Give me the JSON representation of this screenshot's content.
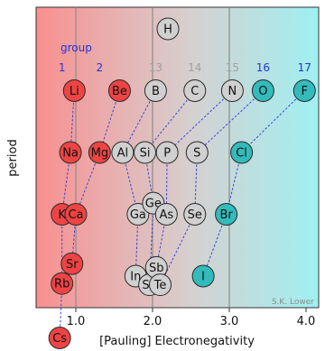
{
  "chart_data": {
    "type": "scatter",
    "xlabel": "[Pauling] Electronegativity",
    "ylabel": "period",
    "xlim": [
      0.35,
      4.35
    ],
    "x_ticks": [
      {
        "value": 1.0,
        "label": "1.0"
      },
      {
        "value": 2.0,
        "label": "2.0"
      },
      {
        "value": 3.0,
        "label": "3.0"
      },
      {
        "value": 4.0,
        "label": "4.0"
      }
    ],
    "grid": "vertical lines at 1.0, 2.0, 3.0",
    "background": "horizontal gradient red to cyan",
    "group_header_label": "group",
    "groups": [
      {
        "label": "1",
        "x": 0.82,
        "color": "#2233dd"
      },
      {
        "label": "2",
        "x": 1.31,
        "color": "#2233dd"
      },
      {
        "label": "13",
        "x": 2.04,
        "color": "#a0a0a0"
      },
      {
        "label": "14",
        "x": 2.55,
        "color": "#a0a0a0"
      },
      {
        "label": "15",
        "x": 3.04,
        "color": "#a0a0a0"
      },
      {
        "label": "16",
        "x": 3.44,
        "color": "#2233dd"
      },
      {
        "label": "17",
        "x": 3.98,
        "color": "#2233dd"
      }
    ],
    "elements": [
      {
        "symbol": "H",
        "x": 2.2,
        "period": 1,
        "color": "#d0d0d0"
      },
      {
        "symbol": "Li",
        "x": 0.98,
        "period": 2,
        "color": "#ee4444"
      },
      {
        "symbol": "Be",
        "x": 1.57,
        "period": 2,
        "color": "#ee4444"
      },
      {
        "symbol": "B",
        "x": 2.04,
        "period": 2,
        "color": "#d0d0d0"
      },
      {
        "symbol": "C",
        "x": 2.55,
        "period": 2,
        "color": "#d0d0d0"
      },
      {
        "symbol": "N",
        "x": 3.04,
        "period": 2,
        "color": "#d0d0d0"
      },
      {
        "symbol": "O",
        "x": 3.44,
        "period": 2,
        "color": "#33bbbb"
      },
      {
        "symbol": "F",
        "x": 3.98,
        "period": 2,
        "color": "#33bbbb"
      },
      {
        "symbol": "Na",
        "x": 0.93,
        "period": 3,
        "color": "#ee4444"
      },
      {
        "symbol": "Mg",
        "x": 1.31,
        "period": 3,
        "color": "#ee4444"
      },
      {
        "symbol": "Al",
        "x": 1.61,
        "period": 3,
        "color": "#d0d0d0"
      },
      {
        "symbol": "Si",
        "x": 1.9,
        "period": 3,
        "color": "#d0d0d0"
      },
      {
        "symbol": "P",
        "x": 2.19,
        "period": 3,
        "color": "#d0d0d0"
      },
      {
        "symbol": "S",
        "x": 2.58,
        "period": 3,
        "color": "#d0d0d0"
      },
      {
        "symbol": "Cl",
        "x": 3.16,
        "period": 3,
        "color": "#33bbbb"
      },
      {
        "symbol": "K",
        "x": 0.82,
        "period": 4,
        "color": "#ee4444"
      },
      {
        "symbol": "Ca",
        "x": 1.0,
        "period": 4,
        "color": "#ee4444"
      },
      {
        "symbol": "Ga",
        "x": 1.81,
        "period": 4,
        "color": "#d0d0d0"
      },
      {
        "symbol": "Ge",
        "x": 2.01,
        "period": 3.82,
        "color": "#d0d0d0"
      },
      {
        "symbol": "As",
        "x": 2.18,
        "period": 4,
        "color": "#d0d0d0"
      },
      {
        "symbol": "Se",
        "x": 2.55,
        "period": 4,
        "color": "#d0d0d0"
      },
      {
        "symbol": "Br",
        "x": 2.96,
        "period": 4,
        "color": "#33bbbb"
      },
      {
        "symbol": "Sr",
        "x": 0.95,
        "period": 4.8,
        "color": "#ee4444"
      },
      {
        "symbol": "Rb",
        "x": 0.82,
        "period": 5.12,
        "color": "#ee4444"
      },
      {
        "symbol": "In",
        "x": 1.78,
        "period": 5,
        "color": "#d0d0d0"
      },
      {
        "symbol": "Sn",
        "x": 1.96,
        "period": 5.14,
        "color": "#d0d0d0"
      },
      {
        "symbol": "Sb",
        "x": 2.05,
        "period": 4.86,
        "color": "#d0d0d0"
      },
      {
        "symbol": "Te",
        "x": 2.1,
        "period": 5.14,
        "color": "#d0d0d0"
      },
      {
        "symbol": "I",
        "x": 2.66,
        "period": 5,
        "color": "#33bbbb"
      },
      {
        "symbol": "Cs",
        "x": 0.79,
        "period": 6,
        "color": "#ee4444"
      }
    ],
    "connections": [
      [
        "Li",
        "Na"
      ],
      [
        "Na",
        "K"
      ],
      [
        "K",
        "Rb"
      ],
      [
        "Rb",
        "Cs"
      ],
      [
        "Be",
        "Mg"
      ],
      [
        "Mg",
        "Ca"
      ],
      [
        "Ca",
        "Sr"
      ],
      [
        "B",
        "Al"
      ],
      [
        "Al",
        "Ga"
      ],
      [
        "Ga",
        "In"
      ],
      [
        "C",
        "Si"
      ],
      [
        "Si",
        "Ge"
      ],
      [
        "Ge",
        "Sn"
      ],
      [
        "N",
        "P"
      ],
      [
        "P",
        "As"
      ],
      [
        "As",
        "Sb"
      ],
      [
        "O",
        "S"
      ],
      [
        "S",
        "Se"
      ],
      [
        "Se",
        "Te"
      ],
      [
        "F",
        "Cl"
      ],
      [
        "Cl",
        "Br"
      ],
      [
        "Br",
        "I"
      ]
    ],
    "annotation": "S.K. Lower"
  }
}
